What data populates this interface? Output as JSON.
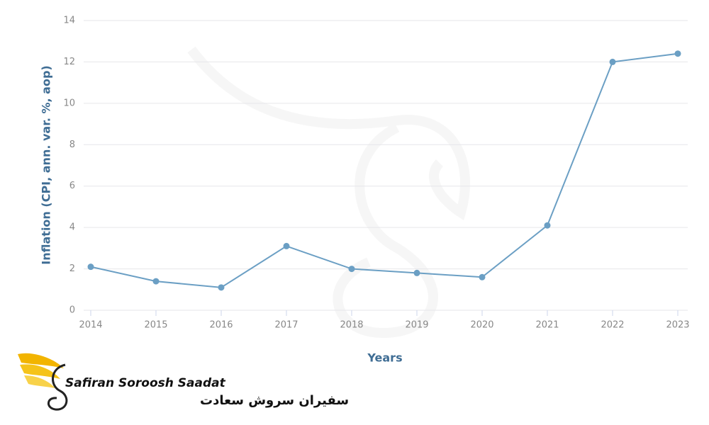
{
  "chart_data": {
    "type": "line",
    "y_label": "Inflation (CPI, ann. var. %, aop)",
    "x_label": "Years",
    "x": [
      2014,
      2015,
      2016,
      2017,
      2018,
      2019,
      2020,
      2021,
      2022,
      2023
    ],
    "values": [
      2.1,
      1.4,
      1.1,
      3.1,
      2.0,
      1.8,
      1.6,
      4.1,
      12.0,
      12.4
    ],
    "color": "#6b9fc4",
    "xlim": [
      2014,
      2023
    ],
    "xticks": [
      2014,
      2015,
      2016,
      2017,
      2018,
      2019,
      2020,
      2021,
      2022,
      2023
    ],
    "ylim": [
      0,
      14
    ],
    "yticks": [
      0,
      2,
      4,
      6,
      8,
      10,
      12,
      14
    ],
    "grid": true
  },
  "logo": {
    "name": "Safiran Soroosh Saadat",
    "name_fa": "سفیران سروش سعادت"
  }
}
